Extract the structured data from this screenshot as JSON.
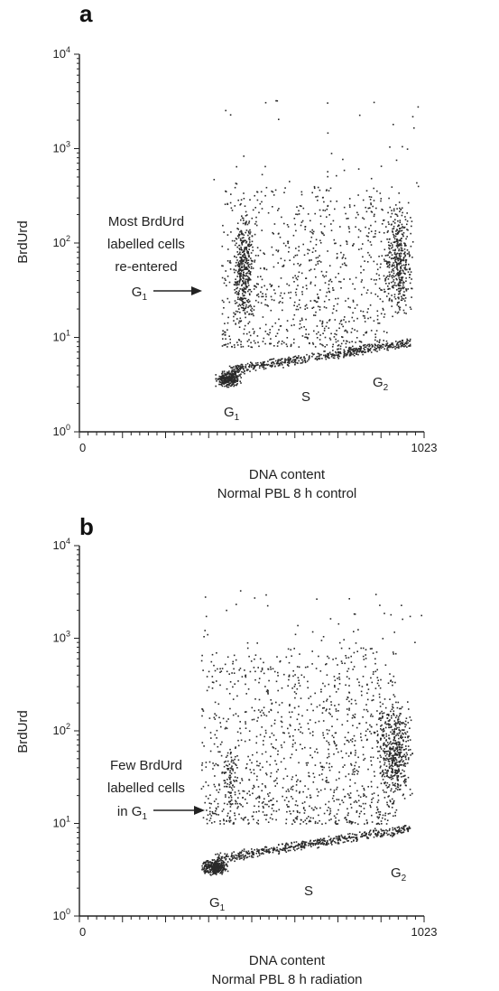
{
  "chart_data": [
    {
      "type": "scatter",
      "panel": "a",
      "xlabel": "DNA content",
      "caption": "Normal PBL 8 h control",
      "ylabel": "BrdUrd",
      "xlim": [
        0,
        1023
      ],
      "ylim": [
        1,
        10000
      ],
      "yscale": "log",
      "x_ticks": [
        {
          "label": "0",
          "value": 0
        },
        {
          "label": "1023",
          "value": 1023
        }
      ],
      "y_ticks": [
        {
          "base": "10",
          "exp": "0",
          "value": 1
        },
        {
          "base": "10",
          "exp": "1",
          "value": 10
        },
        {
          "base": "10",
          "exp": "2",
          "value": 100
        },
        {
          "base": "10",
          "exp": "3",
          "value": 1000
        },
        {
          "base": "10",
          "exp": "4",
          "value": 10000
        }
      ],
      "annotations": [
        {
          "lines": [
            "Most BrdUrd",
            "labelled cells",
            "re-entered"
          ],
          "last_line": "G",
          "last_sub": "1",
          "arrow": true
        },
        {
          "text": "G",
          "sub": "1",
          "x": 440,
          "y": 2.2
        },
        {
          "text": "S",
          "x": 690,
          "y": 2.5
        },
        {
          "text": "G",
          "sub": "2",
          "x": 945,
          "y": 3.1
        }
      ],
      "clusters": [
        {
          "name": "G1 low",
          "x": [
            400,
            480
          ],
          "y": [
            3,
            4.5
          ],
          "count": 280
        },
        {
          "name": "S diagonal",
          "x": [
            440,
            980
          ],
          "y": [
            4.5,
            9
          ],
          "count": 500
        },
        {
          "name": "G1 re-entered",
          "x": [
            455,
            515
          ],
          "y": [
            15,
            200
          ],
          "count": 380
        },
        {
          "name": "S broad",
          "x": [
            420,
            920
          ],
          "y": [
            8,
            400
          ],
          "count": 850
        },
        {
          "name": "G2",
          "x": [
            900,
            990
          ],
          "y": [
            15,
            300
          ],
          "count": 420
        },
        {
          "name": "upper sparse",
          "x": [
            360,
            1020
          ],
          "y": [
            300,
            3500
          ],
          "count": 45
        }
      ]
    },
    {
      "type": "scatter",
      "panel": "b",
      "xlabel": "DNA content",
      "caption": "Normal PBL 8 h radiation",
      "ylabel": "BrdUrd",
      "xlim": [
        0,
        1023
      ],
      "ylim": [
        1,
        10000
      ],
      "yscale": "log",
      "x_ticks": [
        {
          "label": "0",
          "value": 0
        },
        {
          "label": "1023",
          "value": 1023
        }
      ],
      "y_ticks": [
        {
          "base": "10",
          "exp": "0",
          "value": 1
        },
        {
          "base": "10",
          "exp": "1",
          "value": 10
        },
        {
          "base": "10",
          "exp": "2",
          "value": 100
        },
        {
          "base": "10",
          "exp": "3",
          "value": 1000
        },
        {
          "base": "10",
          "exp": "4",
          "value": 10000
        }
      ],
      "annotations": [
        {
          "lines": [
            "Few BrdUrd",
            "labelled cells"
          ],
          "last_line": "in G",
          "last_sub": "1",
          "arrow": true
        },
        {
          "text": "G",
          "sub": "1",
          "x": 400,
          "y": 2.2
        },
        {
          "text": "S",
          "x": 690,
          "y": 2.5
        },
        {
          "text": "G",
          "sub": "2",
          "x": 945,
          "y": 3.1
        }
      ],
      "clusters": [
        {
          "name": "G1 low",
          "x": [
            360,
            440
          ],
          "y": [
            2.8,
            4.2
          ],
          "count": 320
        },
        {
          "name": "S diagonal",
          "x": [
            400,
            980
          ],
          "y": [
            4.2,
            9
          ],
          "count": 520
        },
        {
          "name": "G1 sparse",
          "x": [
            420,
            470
          ],
          "y": [
            10,
            100
          ],
          "count": 90
        },
        {
          "name": "S broad",
          "x": [
            360,
            940
          ],
          "y": [
            10,
            800
          ],
          "count": 1100
        },
        {
          "name": "G2",
          "x": [
            880,
            990
          ],
          "y": [
            15,
            250
          ],
          "count": 480
        },
        {
          "name": "upper sparse",
          "x": [
            360,
            1020
          ],
          "y": [
            900,
            3500
          ],
          "count": 40
        }
      ]
    }
  ]
}
